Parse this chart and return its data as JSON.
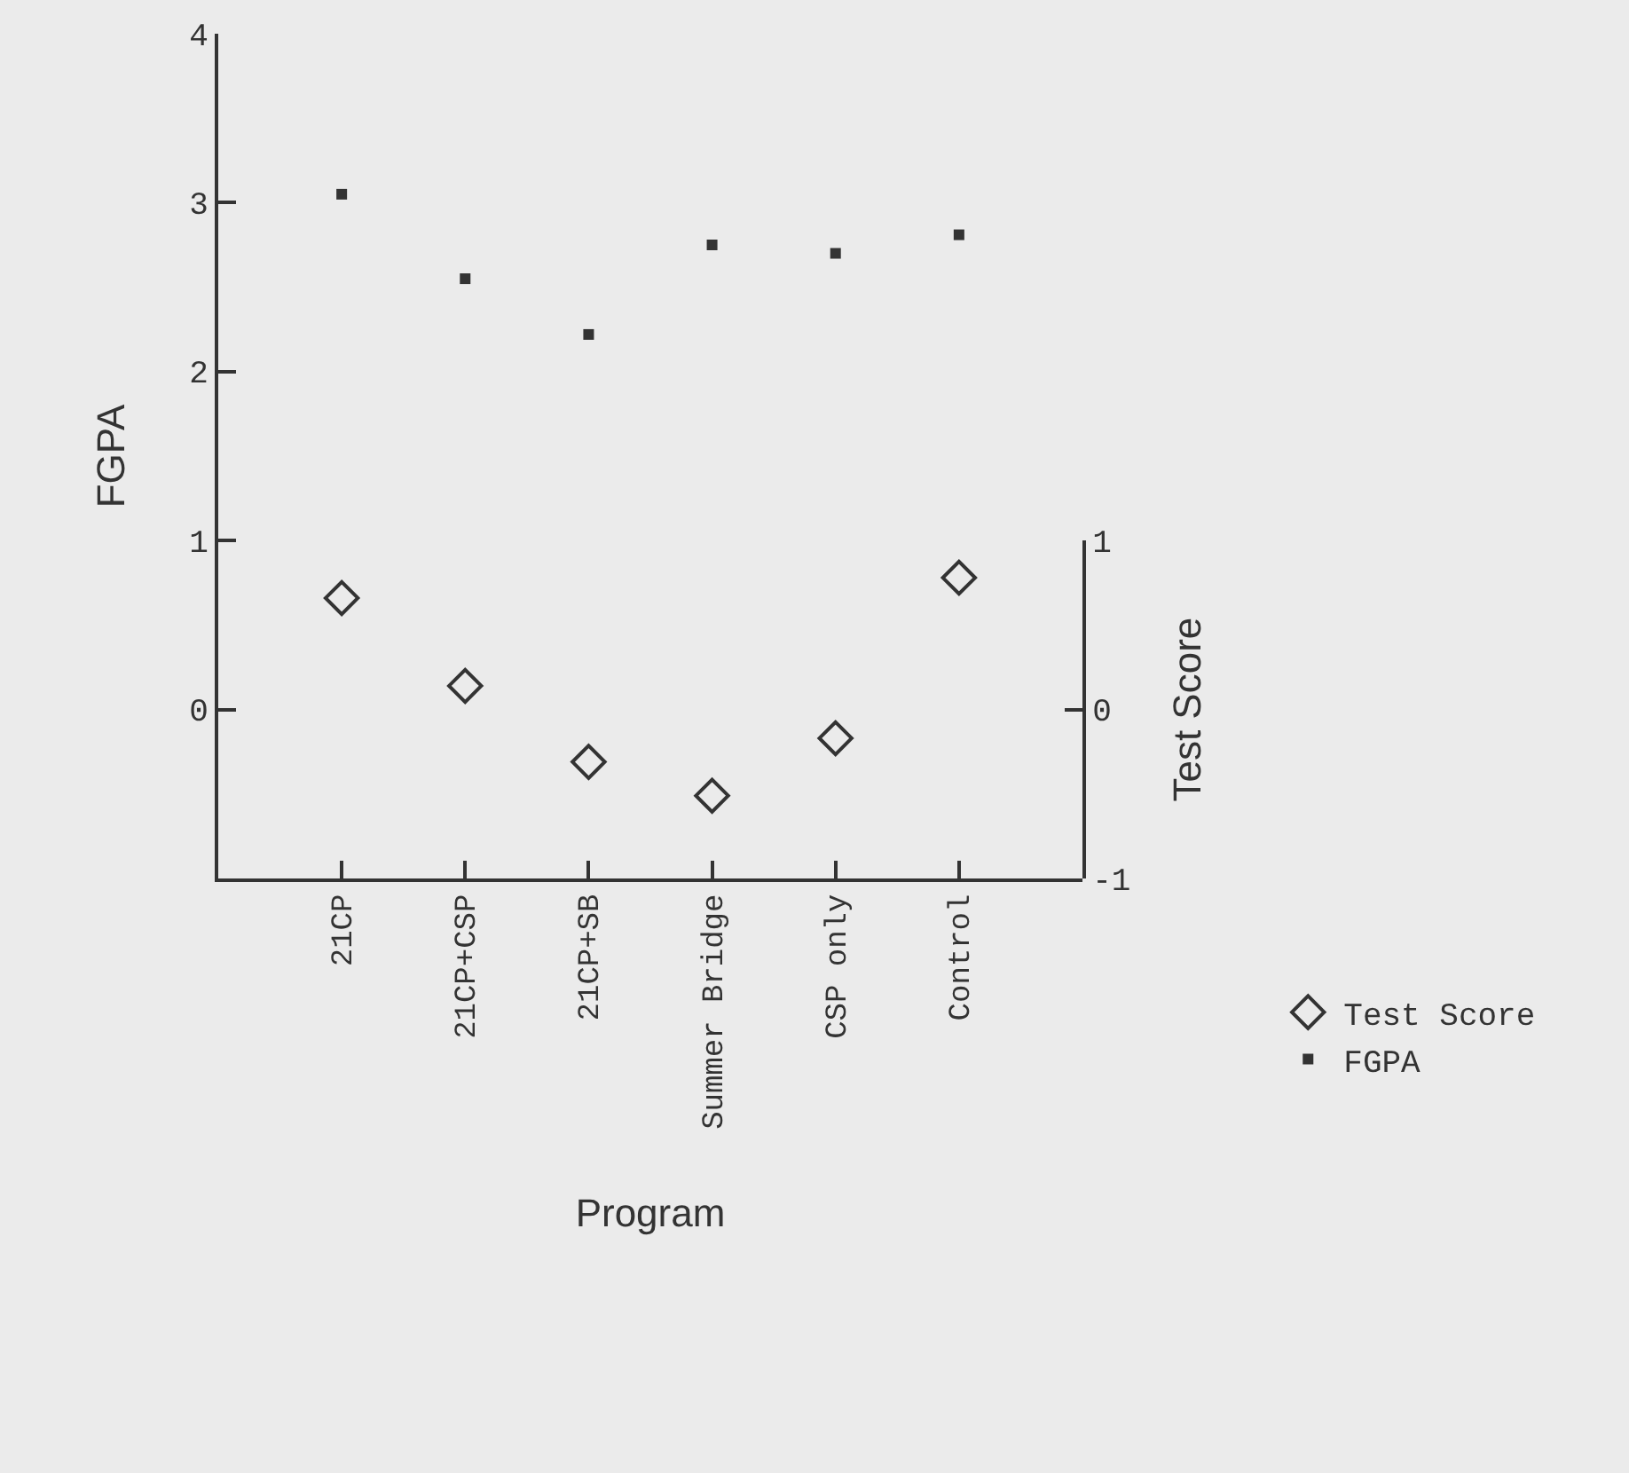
{
  "chart_data": {
    "type": "scatter",
    "xlabel": "Program",
    "ylabel": "FGPA",
    "y2label": "Test Score",
    "categories": [
      "21CP",
      "21CP+CSP",
      "21CP+SB",
      "Summer Bridge",
      "CSP only",
      "Control"
    ],
    "series": [
      {
        "name": "Test Score",
        "color": "#333333",
        "marker": "diamond",
        "axis": "y2",
        "values": [
          0.66,
          0.14,
          -0.31,
          -0.51,
          -0.17,
          0.78
        ]
      },
      {
        "name": "FGPA",
        "color": "#333333",
        "marker": "square",
        "values": [
          3.05,
          2.55,
          2.22,
          2.75,
          2.7,
          2.81
        ]
      }
    ],
    "ylim": [
      -1,
      4
    ],
    "yticks": [
      0,
      1,
      2,
      3,
      4
    ],
    "y2lim": [
      -1,
      1
    ],
    "y2ticks": [
      -1,
      0,
      1
    ],
    "grid": false,
    "legend": "bottom right"
  }
}
